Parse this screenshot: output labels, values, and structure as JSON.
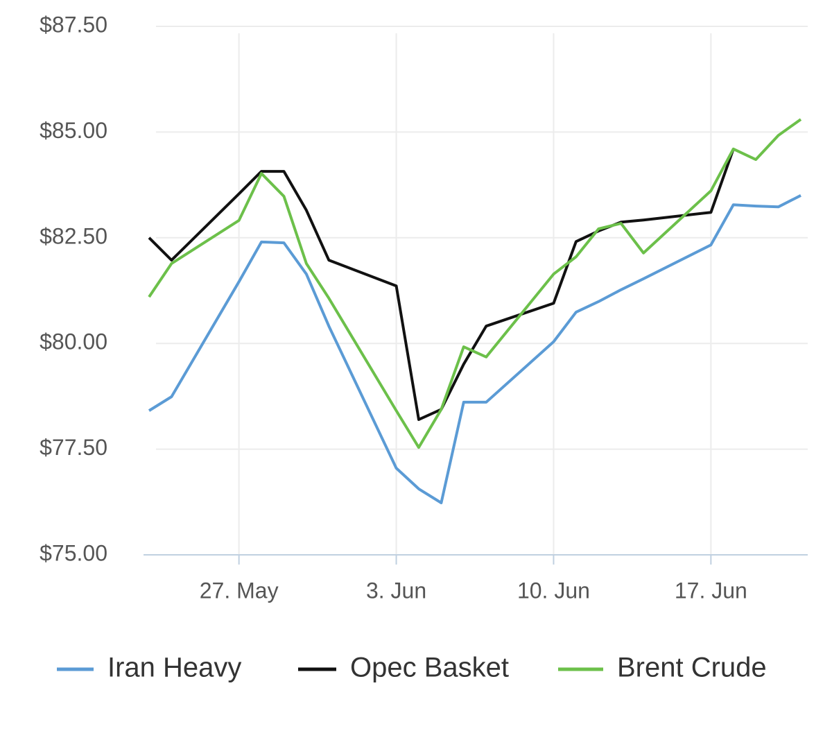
{
  "chart_data": {
    "type": "line",
    "x": [
      "05-23",
      "05-24",
      "05-27",
      "05-28",
      "05-29",
      "05-30",
      "05-31",
      "06-03",
      "06-04",
      "06-05",
      "06-06",
      "06-07",
      "06-10",
      "06-11",
      "06-12",
      "06-13",
      "06-14",
      "06-17",
      "06-18",
      "06-19",
      "06-20",
      "06-21"
    ],
    "series": [
      {
        "name": "Iran Heavy",
        "color": "#5b9bd5",
        "values": [
          78.41,
          78.74,
          81.46,
          82.4,
          82.38,
          81.64,
          80.41,
          77.05,
          76.56,
          76.23,
          78.61,
          78.61,
          80.04,
          80.74,
          80.99,
          81.27,
          81.53,
          82.33,
          83.28,
          83.25,
          83.23,
          83.5
        ]
      },
      {
        "name": "Opec Basket",
        "color": "#111111",
        "values": [
          82.5,
          81.97,
          83.54,
          84.07,
          84.07,
          83.15,
          81.97,
          81.36,
          78.2,
          78.44,
          79.51,
          80.41,
          80.95,
          82.41,
          82.66,
          82.87,
          82.92,
          83.1,
          84.6,
          null,
          null,
          null
        ]
      },
      {
        "name": "Brent Crude",
        "color": "#6cc04a",
        "values": [
          81.1,
          81.89,
          82.91,
          84.02,
          83.48,
          81.89,
          81.07,
          78.41,
          77.54,
          78.44,
          79.92,
          79.68,
          81.64,
          82.05,
          82.71,
          82.84,
          82.14,
          83.61,
          84.6,
          84.35,
          84.92,
          85.3
        ]
      }
    ],
    "xticks": [
      {
        "value": "05-27",
        "label": "27. May"
      },
      {
        "value": "06-03",
        "label": "3. Jun"
      },
      {
        "value": "06-10",
        "label": "10. Jun"
      },
      {
        "value": "06-17",
        "label": "17. Jun"
      }
    ],
    "ylim": [
      75,
      87.5
    ],
    "yticks": [
      {
        "value": 75,
        "label": "$75.00"
      },
      {
        "value": 77.5,
        "label": "$77.50"
      },
      {
        "value": 80,
        "label": "$80.00"
      },
      {
        "value": 82.5,
        "label": "$82.50"
      },
      {
        "value": 85,
        "label": "$85.00"
      },
      {
        "value": 87.5,
        "label": "$87.50"
      }
    ],
    "grid": true,
    "legend": "bottom"
  }
}
